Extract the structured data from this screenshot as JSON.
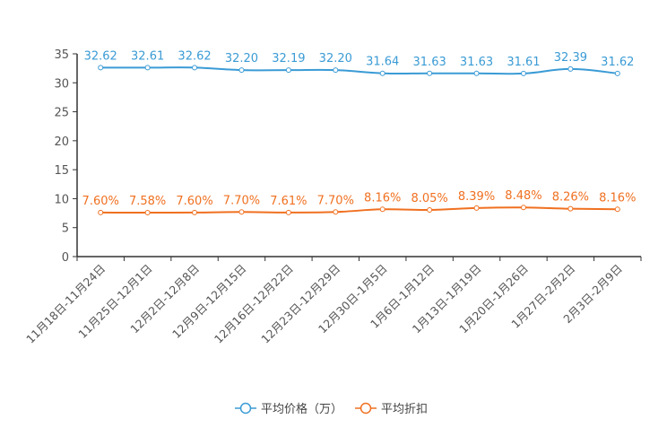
{
  "chart_data": {
    "type": "line",
    "title": "",
    "xlabel": "",
    "ylabel": "",
    "ylim": [
      0,
      35
    ],
    "yticks": [
      0,
      5,
      10,
      15,
      20,
      25,
      30,
      35
    ],
    "grid": false,
    "legend_position": "bottom",
    "categories": [
      "11月18日-11月24日",
      "11月25日-12月1日",
      "12月2日-12月8日",
      "12月9日-12月15日",
      "12月16日-12月22日",
      "12月23日-12月29日",
      "12月30日-1月5日",
      "1月6日-1月12日",
      "1月13日-1月19日",
      "1月20日-1月26日",
      "1月27日-2月2日",
      "2月3日-2月9日"
    ],
    "series": [
      {
        "name": "平均价格（万）",
        "color": "#3a9bd5",
        "values": [
          32.62,
          32.61,
          32.62,
          32.2,
          32.19,
          32.2,
          31.64,
          31.63,
          31.63,
          31.61,
          32.39,
          31.62
        ],
        "labels": [
          "32.62",
          "32.61",
          "32.62",
          "32.20",
          "32.19",
          "32.20",
          "31.64",
          "31.63",
          "31.63",
          "31.61",
          "32.39",
          "31.62"
        ]
      },
      {
        "name": "平均折扣",
        "color": "#f07020",
        "values": [
          7.6,
          7.58,
          7.6,
          7.7,
          7.61,
          7.7,
          8.16,
          8.05,
          8.39,
          8.48,
          8.26,
          8.16
        ],
        "labels": [
          "7.60%",
          "7.58%",
          "7.60%",
          "7.70%",
          "7.61%",
          "7.70%",
          "8.16%",
          "8.05%",
          "8.39%",
          "8.48%",
          "8.26%",
          "8.16%"
        ]
      }
    ]
  }
}
